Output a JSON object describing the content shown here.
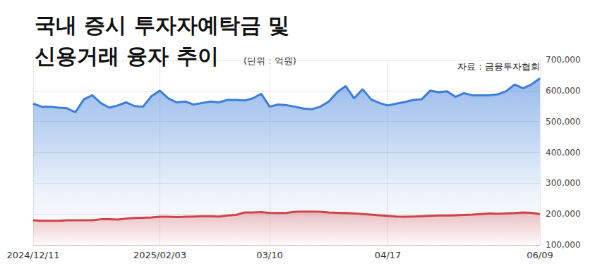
{
  "chart_data": {
    "type": "area",
    "title": "국내 증시 투자자예탁금 및\n신용거래 융자 추이",
    "unit_label": "(단위 : 억원)",
    "source": "자료 : 금융투자협회",
    "categories": [
      "2024/12/11",
      null,
      null,
      null,
      null,
      null,
      null,
      null,
      null,
      null,
      null,
      null,
      null,
      null,
      null,
      "2025/02/03",
      null,
      null,
      null,
      null,
      null,
      null,
      null,
      null,
      null,
      null,
      null,
      null,
      "03/10",
      null,
      null,
      null,
      null,
      null,
      null,
      null,
      null,
      null,
      null,
      null,
      null,
      null,
      "04/17",
      null,
      null,
      null,
      null,
      null,
      null,
      null,
      null,
      null,
      null,
      null,
      null,
      null,
      null,
      null,
      null,
      null,
      "06/09"
    ],
    "series": [
      {
        "color": "#3b7dd8",
        "values": [
          558000,
          548000,
          548000,
          545000,
          543000,
          530000,
          572000,
          585000,
          560000,
          545000,
          552000,
          562000,
          550000,
          548000,
          582000,
          600000,
          575000,
          562000,
          565000,
          555000,
          560000,
          565000,
          562000,
          570000,
          570000,
          568000,
          575000,
          590000,
          548000,
          555000,
          553000,
          548000,
          542000,
          540000,
          548000,
          565000,
          595000,
          615000,
          575000,
          605000,
          572000,
          560000,
          552000,
          558000,
          563000,
          570000,
          572000,
          600000,
          595000,
          598000,
          580000,
          592000,
          585000,
          585000,
          585000,
          588000,
          598000,
          620000,
          608000,
          620000,
          640000
        ]
      },
      {
        "color": "#d9403f",
        "values": [
          180000,
          178000,
          178000,
          178000,
          180000,
          180000,
          180000,
          180000,
          183000,
          183000,
          182000,
          185000,
          187000,
          188000,
          189000,
          191000,
          191000,
          190000,
          191000,
          192000,
          193000,
          193000,
          192000,
          195000,
          197000,
          205000,
          205000,
          206000,
          204000,
          203000,
          204000,
          207000,
          208000,
          208000,
          207000,
          205000,
          204000,
          203000,
          202000,
          200000,
          198000,
          196000,
          194000,
          192000,
          191000,
          192000,
          193000,
          194000,
          195000,
          195000,
          196000,
          197000,
          198000,
          200000,
          202000,
          201000,
          202000,
          203000,
          205000,
          204000,
          200000
        ]
      }
    ],
    "ylim": [
      100000,
      700000
    ],
    "yticks": [
      {
        "value": 100000,
        "label": "100,000"
      },
      {
        "value": 200000,
        "label": "200,000"
      },
      {
        "value": 300000,
        "label": "300,000"
      },
      {
        "value": 400000,
        "label": "400,000"
      },
      {
        "value": 500000,
        "label": "500,000"
      },
      {
        "value": 600000,
        "label": "600,000"
      },
      {
        "value": 700000,
        "label": "700,000"
      }
    ],
    "grid": true
  }
}
